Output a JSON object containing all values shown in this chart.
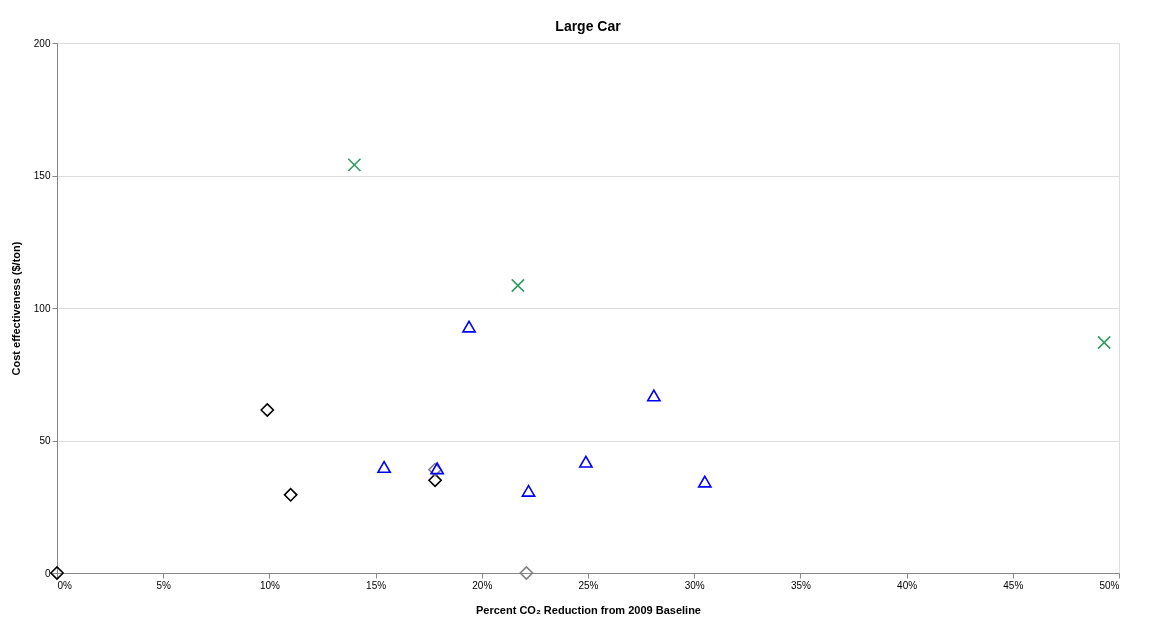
{
  "chart_data": {
    "type": "scatter",
    "title": "Large Car",
    "xlabel": "Percent CO₂ Reduction from 2009 Baseline",
    "ylabel": "Cost effectiveness ($/ton)",
    "xlim": [
      0,
      50
    ],
    "xticks": [
      {
        "value": 0,
        "label": "0%"
      },
      {
        "value": 5,
        "label": "5%"
      },
      {
        "value": 10,
        "label": "10%"
      },
      {
        "value": 15,
        "label": "15%"
      },
      {
        "value": 20,
        "label": "20%"
      },
      {
        "value": 25,
        "label": "25%"
      },
      {
        "value": 30,
        "label": "30%"
      },
      {
        "value": 35,
        "label": "35%"
      },
      {
        "value": 40,
        "label": "40%"
      },
      {
        "value": 45,
        "label": "45%"
      },
      {
        "value": 50,
        "label": "50%"
      }
    ],
    "ylim": [
      0,
      200
    ],
    "yticks": [
      0,
      50,
      100,
      150,
      200
    ],
    "grid": "y",
    "series": [
      {
        "color": "#000000",
        "marker": "diamond",
        "x": [
          0,
          9.9,
          11.0,
          17.8
        ],
        "values": [
          0,
          61.5,
          29.5,
          35
        ]
      },
      {
        "color": "#808080",
        "marker": "diamond",
        "x": [
          17.8,
          22.1
        ],
        "values": [
          39,
          0
        ]
      },
      {
        "color": "#0000ff",
        "marker": "triangle",
        "x": [
          15.4,
          17.9,
          19.4,
          22.2,
          24.9,
          28.1,
          30.5
        ],
        "values": [
          40,
          39.5,
          93,
          31,
          42,
          67,
          34.5
        ]
      },
      {
        "color": "#339966",
        "marker": "cross",
        "x": [
          14.0,
          21.7,
          49.3
        ],
        "values": [
          154,
          108.5,
          87
        ]
      }
    ]
  }
}
